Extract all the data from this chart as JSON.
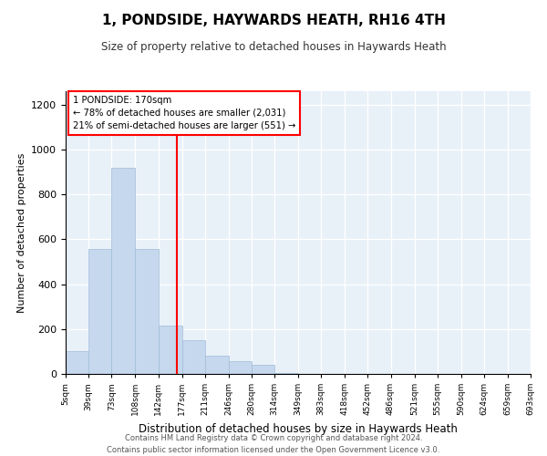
{
  "title": "1, PONDSIDE, HAYWARDS HEATH, RH16 4TH",
  "subtitle": "Size of property relative to detached houses in Haywards Heath",
  "xlabel": "Distribution of detached houses by size in Haywards Heath",
  "ylabel": "Number of detached properties",
  "bar_color": "#c5d8ed",
  "bar_edge_color": "#a0bcd8",
  "background_color": "#e8f0f8",
  "grid_color": "white",
  "annotation_line_color": "red",
  "annotation_property_value": 170,
  "annotation_text_line1": "1 PONDSIDE: 170sqm",
  "annotation_text_line2": "← 78% of detached houses are smaller (2,031)",
  "annotation_text_line3": "21% of semi-detached houses are larger (551) →",
  "footer_line1": "Contains HM Land Registry data © Crown copyright and database right 2024.",
  "footer_line2": "Contains public sector information licensed under the Open Government Licence v3.0.",
  "bin_edges": [
    5,
    39,
    73,
    108,
    142,
    177,
    211,
    246,
    280,
    314,
    349,
    383,
    418,
    452,
    486,
    521,
    555,
    590,
    624,
    659,
    693
  ],
  "bar_heights": [
    100,
    555,
    920,
    555,
    215,
    150,
    80,
    55,
    40,
    5,
    0,
    0,
    0,
    0,
    0,
    0,
    0,
    0,
    0,
    0
  ],
  "ylim": [
    0,
    1260
  ],
  "yticks": [
    0,
    200,
    400,
    600,
    800,
    1000,
    1200
  ],
  "tick_labels": [
    "5sqm",
    "39sqm",
    "73sqm",
    "108sqm",
    "142sqm",
    "177sqm",
    "211sqm",
    "246sqm",
    "280sqm",
    "314sqm",
    "349sqm",
    "383sqm",
    "418sqm",
    "452sqm",
    "486sqm",
    "521sqm",
    "555sqm",
    "590sqm",
    "624sqm",
    "659sqm",
    "693sqm"
  ]
}
